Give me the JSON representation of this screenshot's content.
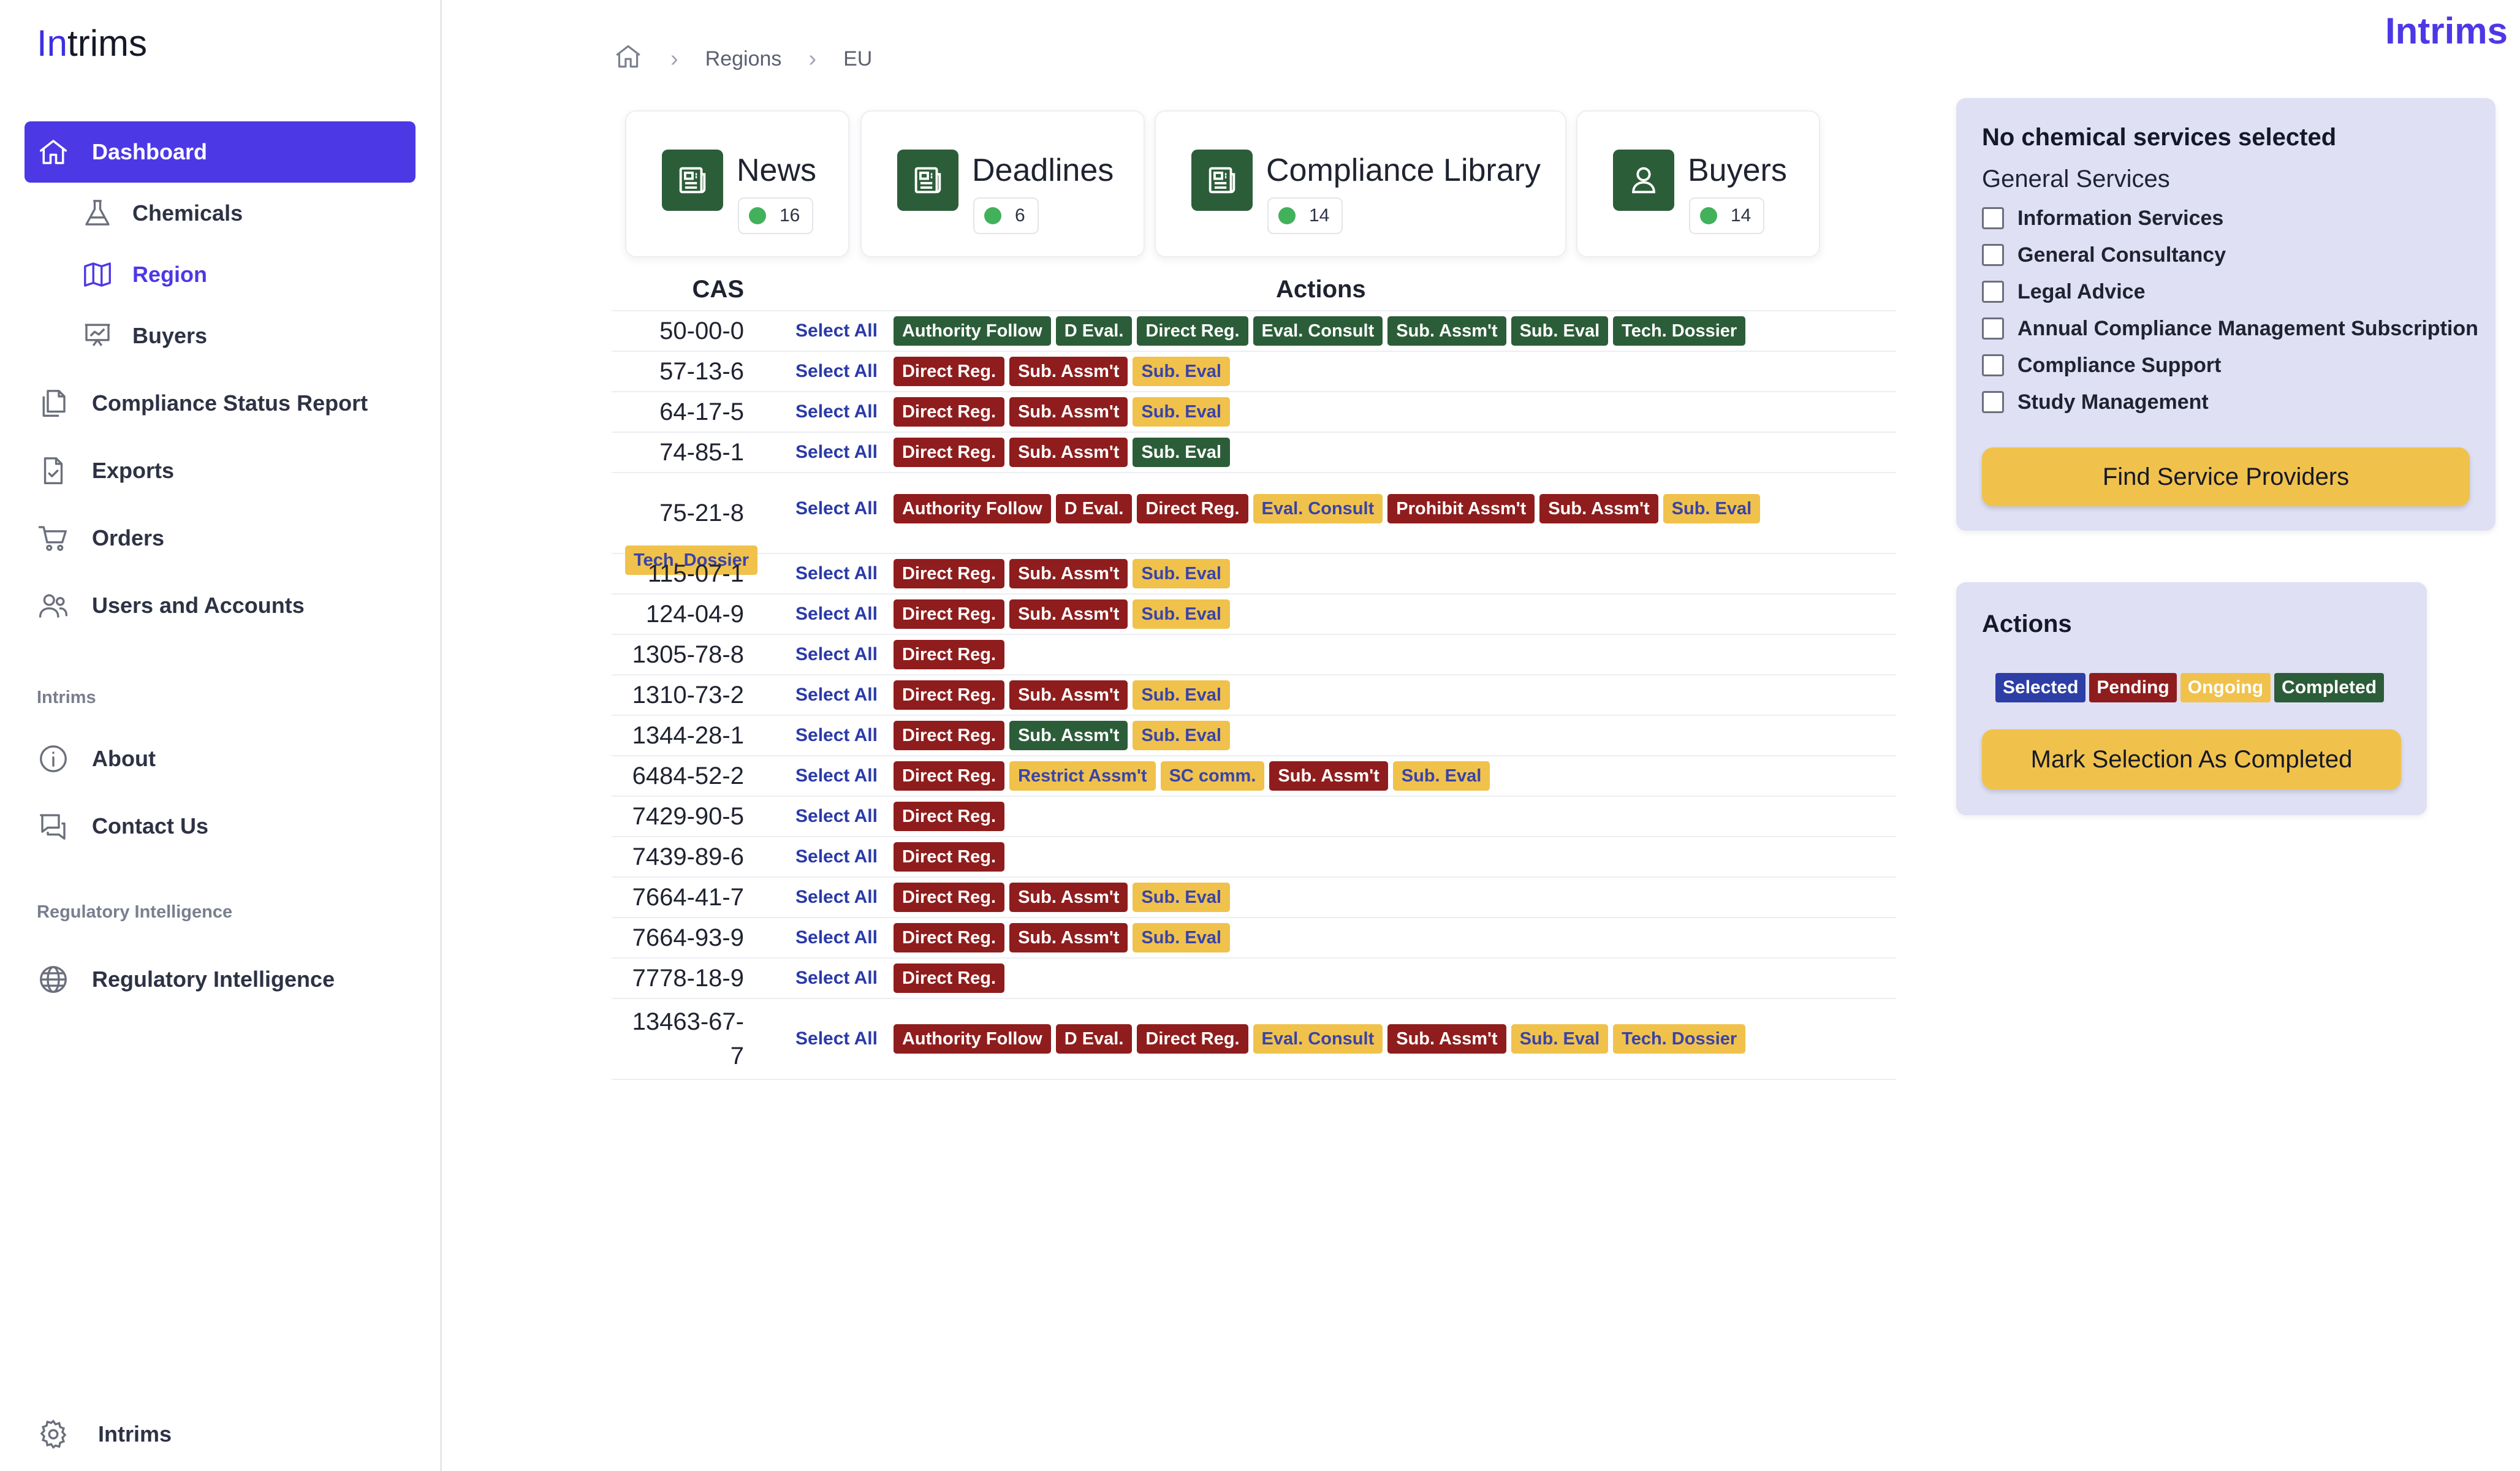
{
  "app": {
    "logo_prefix": "In",
    "logo_rest": "trims",
    "brand": "Intrims"
  },
  "sidebar": {
    "items": [
      {
        "label": "Dashboard"
      },
      {
        "label": "Chemicals"
      },
      {
        "label": "Region"
      },
      {
        "label": "Buyers"
      },
      {
        "label": "Compliance Status Report"
      },
      {
        "label": "Exports"
      },
      {
        "label": "Orders"
      },
      {
        "label": "Users and Accounts"
      },
      {
        "label": "About"
      },
      {
        "label": "Contact Us"
      },
      {
        "label": "Regulatory Intelligence"
      }
    ],
    "section_intrims": "Intrims",
    "section_regint": "Regulatory Intelligence",
    "footer_label": "Intrims"
  },
  "breadcrumb": {
    "items": [
      "Regions",
      "EU"
    ]
  },
  "cards": [
    {
      "title": "News",
      "count": "16"
    },
    {
      "title": "Deadlines",
      "count": "6"
    },
    {
      "title": "Compliance Library",
      "count": "14"
    },
    {
      "title": "Buyers",
      "count": "14"
    }
  ],
  "table": {
    "headers": {
      "cas": "CAS",
      "actions": "Actions"
    },
    "select_all_label": "Select All",
    "rows": [
      {
        "cas": "50-00-0",
        "tags": [
          {
            "label": "Authority Follow",
            "status": "completed"
          },
          {
            "label": "D Eval.",
            "status": "completed"
          },
          {
            "label": "Direct Reg.",
            "status": "completed"
          },
          {
            "label": "Eval. Consult",
            "status": "completed"
          },
          {
            "label": "Sub. Assm't",
            "status": "completed"
          },
          {
            "label": "Sub. Eval",
            "status": "completed"
          },
          {
            "label": "Tech. Dossier",
            "status": "completed"
          }
        ]
      },
      {
        "cas": "57-13-6",
        "tags": [
          {
            "label": "Direct Reg.",
            "status": "pending"
          },
          {
            "label": "Sub. Assm't",
            "status": "pending"
          },
          {
            "label": "Sub. Eval",
            "status": "ongoing"
          }
        ]
      },
      {
        "cas": "64-17-5",
        "tags": [
          {
            "label": "Direct Reg.",
            "status": "pending"
          },
          {
            "label": "Sub. Assm't",
            "status": "pending"
          },
          {
            "label": "Sub. Eval",
            "status": "ongoing"
          }
        ]
      },
      {
        "cas": "74-85-1",
        "tags": [
          {
            "label": "Direct Reg.",
            "status": "pending"
          },
          {
            "label": "Sub. Assm't",
            "status": "pending"
          },
          {
            "label": "Sub. Eval",
            "status": "completed"
          }
        ]
      },
      {
        "cas": "75-21-8",
        "tags": [
          {
            "label": "Authority Follow",
            "status": "pending"
          },
          {
            "label": "D Eval.",
            "status": "pending"
          },
          {
            "label": "Direct Reg.",
            "status": "pending"
          },
          {
            "label": "Eval. Consult",
            "status": "ongoing"
          },
          {
            "label": "Prohibit Assm't",
            "status": "pending"
          },
          {
            "label": "Sub. Assm't",
            "status": "pending"
          },
          {
            "label": "Sub. Eval",
            "status": "ongoing"
          }
        ],
        "wrap_tag": {
          "label": "Tech. Dossier",
          "status": "ongoing"
        }
      },
      {
        "cas": "115-07-1",
        "tags": [
          {
            "label": "Direct Reg.",
            "status": "pending"
          },
          {
            "label": "Sub. Assm't",
            "status": "pending"
          },
          {
            "label": "Sub. Eval",
            "status": "ongoing"
          }
        ]
      },
      {
        "cas": "124-04-9",
        "tags": [
          {
            "label": "Direct Reg.",
            "status": "pending"
          },
          {
            "label": "Sub. Assm't",
            "status": "pending"
          },
          {
            "label": "Sub. Eval",
            "status": "ongoing"
          }
        ]
      },
      {
        "cas": "1305-78-8",
        "tags": [
          {
            "label": "Direct Reg.",
            "status": "pending"
          }
        ]
      },
      {
        "cas": "1310-73-2",
        "tags": [
          {
            "label": "Direct Reg.",
            "status": "pending"
          },
          {
            "label": "Sub. Assm't",
            "status": "pending"
          },
          {
            "label": "Sub. Eval",
            "status": "ongoing"
          }
        ]
      },
      {
        "cas": "1344-28-1",
        "tags": [
          {
            "label": "Direct Reg.",
            "status": "pending"
          },
          {
            "label": "Sub. Assm't",
            "status": "completed"
          },
          {
            "label": "Sub. Eval",
            "status": "ongoing"
          }
        ]
      },
      {
        "cas": "6484-52-2",
        "tags": [
          {
            "label": "Direct Reg.",
            "status": "pending"
          },
          {
            "label": "Restrict Assm't",
            "status": "ongoing"
          },
          {
            "label": "SC comm.",
            "status": "ongoing"
          },
          {
            "label": "Sub. Assm't",
            "status": "pending"
          },
          {
            "label": "Sub. Eval",
            "status": "ongoing"
          }
        ]
      },
      {
        "cas": "7429-90-5",
        "tags": [
          {
            "label": "Direct Reg.",
            "status": "pending"
          }
        ]
      },
      {
        "cas": "7439-89-6",
        "tags": [
          {
            "label": "Direct Reg.",
            "status": "pending"
          }
        ]
      },
      {
        "cas": "7664-41-7",
        "tags": [
          {
            "label": "Direct Reg.",
            "status": "pending"
          },
          {
            "label": "Sub. Assm't",
            "status": "pending"
          },
          {
            "label": "Sub. Eval",
            "status": "ongoing"
          }
        ]
      },
      {
        "cas": "7664-93-9",
        "tags": [
          {
            "label": "Direct Reg.",
            "status": "pending"
          },
          {
            "label": "Sub. Assm't",
            "status": "pending"
          },
          {
            "label": "Sub. Eval",
            "status": "ongoing"
          }
        ]
      },
      {
        "cas": "7778-18-9",
        "tags": [
          {
            "label": "Direct Reg.",
            "status": "pending"
          }
        ]
      },
      {
        "cas": "13463-67-7",
        "cas_line1": "13463-67-",
        "cas_line2": "7",
        "tags": [
          {
            "label": "Authority Follow",
            "status": "pending"
          },
          {
            "label": "D Eval.",
            "status": "pending"
          },
          {
            "label": "Direct Reg.",
            "status": "pending"
          },
          {
            "label": "Eval. Consult",
            "status": "ongoing"
          },
          {
            "label": "Sub. Assm't",
            "status": "pending"
          },
          {
            "label": "Sub. Eval",
            "status": "ongoing"
          },
          {
            "label": "Tech. Dossier",
            "status": "ongoing"
          }
        ]
      }
    ]
  },
  "services_panel": {
    "title": "No chemical services selected",
    "subtitle": "General Services",
    "options": [
      "Information Services",
      "General Consultancy",
      "Legal Advice",
      "Annual Compliance Management Subscription",
      "Compliance Support",
      "Study Management"
    ],
    "button": "Find Service Providers"
  },
  "actions_panel": {
    "title": "Actions",
    "legend": [
      {
        "label": "Selected",
        "bg": "#2d3ea6",
        "fg": "#ffffff"
      },
      {
        "label": "Pending",
        "bg": "#8f1d1d",
        "fg": "#ffffff"
      },
      {
        "label": "Ongoing",
        "bg": "#f0c24c",
        "fg": "#ffffff"
      },
      {
        "label": "Completed",
        "bg": "#2c5d39",
        "fg": "#ffffff"
      }
    ],
    "button": "Mark Selection As Completed"
  },
  "colors": {
    "accent": "#4d38e6",
    "completed": "#2c5d39",
    "pending": "#8f1d1d",
    "ongoing": "#f0c24c",
    "selected": "#2d3ea6"
  }
}
